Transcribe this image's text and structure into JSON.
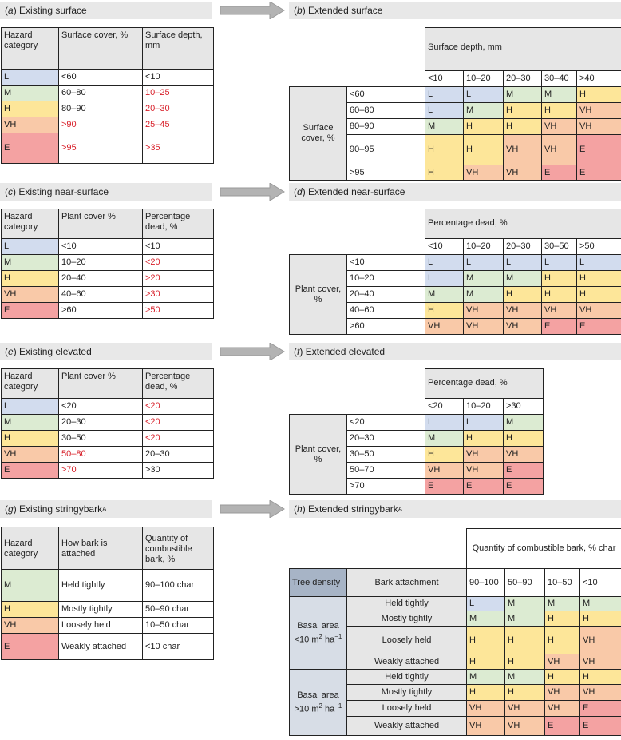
{
  "colors": {
    "L": "#d2dcee",
    "M": "#dcebd2",
    "H": "#fde699",
    "VH": "#f9c9a8",
    "E": "#f4a2a2",
    "header": "#e6e6e6",
    "warn_text": "#d8202a"
  },
  "panels": {
    "a": {
      "title_letter": "a",
      "title_text": "Existing surface",
      "headers": [
        "Hazard category",
        "Surface cover, %",
        "Surface depth, mm"
      ],
      "rows": [
        {
          "cat": "L",
          "c1": "<60",
          "c2": "<10"
        },
        {
          "cat": "M",
          "c1": "60–80",
          "c2": "10–25"
        },
        {
          "cat": "H",
          "c1": "80–90",
          "c2": "20–30"
        },
        {
          "cat": "VH",
          "c1": ">90",
          "c2": "25–45"
        },
        {
          "cat": "E",
          "c1": ">95",
          "c2": ">35"
        }
      ]
    },
    "b": {
      "title_letter": "b",
      "title_text": "Extended surface",
      "col_title": "Surface depth, mm",
      "cols": [
        "<10",
        "10–20",
        "20–30",
        "30–40",
        ">40"
      ],
      "row_title": "Surface cover, %",
      "rows": [
        {
          "label": "<60",
          "vals": [
            "L",
            "L",
            "M",
            "M",
            "H"
          ]
        },
        {
          "label": "60–80",
          "vals": [
            "L",
            "M",
            "H",
            "H",
            "VH"
          ]
        },
        {
          "label": "80–90",
          "vals": [
            "M",
            "H",
            "H",
            "VH",
            "VH"
          ]
        },
        {
          "label": "90–95",
          "vals": [
            "H",
            "H",
            "VH",
            "VH",
            "E"
          ]
        },
        {
          "label": ">95",
          "vals": [
            "H",
            "VH",
            "VH",
            "E",
            "E"
          ]
        }
      ]
    },
    "c": {
      "title_letter": "c",
      "title_text": "Existing near-surface",
      "headers": [
        "Hazard category",
        "Plant cover %",
        "Percentage dead, %"
      ],
      "rows": [
        {
          "cat": "L",
          "c1": "<10",
          "c2": "<10"
        },
        {
          "cat": "M",
          "c1": "10–20",
          "c2": "<20"
        },
        {
          "cat": "H",
          "c1": "20–40",
          "c2": ">20"
        },
        {
          "cat": "VH",
          "c1": "40–60",
          "c2": ">30"
        },
        {
          "cat": "E",
          "c1": ">60",
          "c2": ">50"
        }
      ]
    },
    "d": {
      "title_letter": "d",
      "title_text": "Extended near-surface",
      "col_title": "Percentage dead, %",
      "cols": [
        "<10",
        "10–20",
        "20–30",
        "30–50",
        ">50"
      ],
      "row_title": "Plant cover, %",
      "rows": [
        {
          "label": "<10",
          "vals": [
            "L",
            "L",
            "L",
            "L",
            "L"
          ]
        },
        {
          "label": "10–20",
          "vals": [
            "L",
            "M",
            "M",
            "H",
            "H"
          ]
        },
        {
          "label": "20–40",
          "vals": [
            "M",
            "M",
            "H",
            "H",
            "H"
          ]
        },
        {
          "label": "40–60",
          "vals": [
            "H",
            "VH",
            "VH",
            "VH",
            "VH"
          ]
        },
        {
          "label": ">60",
          "vals": [
            "VH",
            "VH",
            "VH",
            "E",
            "E"
          ]
        }
      ]
    },
    "e": {
      "title_letter": "e",
      "title_text": "Existing elevated",
      "headers": [
        "Hazard category",
        "Plant cover %",
        "Percentage dead, %"
      ],
      "rows": [
        {
          "cat": "L",
          "c1": "<20",
          "c2": "<20"
        },
        {
          "cat": "M",
          "c1": "20–30",
          "c2": "<20"
        },
        {
          "cat": "H",
          "c1": "30–50",
          "c2": "<20"
        },
        {
          "cat": "VH",
          "c1": "50–80",
          "c2": "20–30"
        },
        {
          "cat": "E",
          "c1": ">70",
          "c2": ">30"
        }
      ]
    },
    "f": {
      "title_letter": "f",
      "title_text": "Extended elevated",
      "col_title": "Percentage dead, %",
      "cols": [
        "<20",
        "10–20",
        ">30"
      ],
      "row_title": "Plant cover, %",
      "rows": [
        {
          "label": "<20",
          "vals": [
            "L",
            "L",
            "M"
          ]
        },
        {
          "label": "20–30",
          "vals": [
            "M",
            "H",
            "H"
          ]
        },
        {
          "label": "30–50",
          "vals": [
            "H",
            "VH",
            "VH"
          ]
        },
        {
          "label": "50–70",
          "vals": [
            "VH",
            "VH",
            "E"
          ]
        },
        {
          "label": ">70",
          "vals": [
            "E",
            "E",
            "E"
          ]
        }
      ]
    },
    "g": {
      "title_letter": "g",
      "title_text": "Existing stringybark",
      "title_sup": "A",
      "headers": [
        "Hazard category",
        "How bark is attached",
        "Quantity of combustible bark, %"
      ],
      "rows": [
        {
          "cat": "M",
          "c1": "Held tightly",
          "c2": "90–100 char"
        },
        {
          "cat": "H",
          "c1": "Mostly tightly",
          "c2": "50–90 char"
        },
        {
          "cat": "VH",
          "c1": "Loosely held",
          "c2": "10–50 char"
        },
        {
          "cat": "E",
          "c1": "Weakly attached",
          "c2": "<10 char"
        }
      ]
    },
    "h": {
      "title_letter": "h",
      "title_text": "Extended stringybark",
      "title_sup": "A",
      "col_title": "Quantity of combustible bark, % char",
      "tree_density": "Tree density",
      "bark_attachment": "Bark attachment",
      "cols": [
        "90–100",
        "50–90",
        "10–50",
        "<10"
      ],
      "group1": {
        "line1": "Basal area",
        "line2": "<10 m",
        "sup1": "2",
        "mid": " ha",
        "sup2": "−1"
      },
      "group2": {
        "line1": "Basal area",
        "line2": ">10 m",
        "sup1": "2",
        "mid": " ha",
        "sup2": "−1"
      },
      "rows": [
        {
          "label": "Held tightly",
          "vals": [
            "L",
            "M",
            "M",
            "M"
          ]
        },
        {
          "label": "Mostly tightly",
          "vals": [
            "M",
            "M",
            "H",
            "H"
          ]
        },
        {
          "label": "Loosely held",
          "vals": [
            "H",
            "H",
            "H",
            "VH"
          ]
        },
        {
          "label": "Weakly attached",
          "vals": [
            "H",
            "H",
            "VH",
            "VH"
          ]
        },
        {
          "label": "Held tightly",
          "vals": [
            "M",
            "M",
            "H",
            "H"
          ]
        },
        {
          "label": "Mostly tightly",
          "vals": [
            "H",
            "H",
            "VH",
            "VH"
          ]
        },
        {
          "label": "Loosely held",
          "vals": [
            "VH",
            "VH",
            "VH",
            "E"
          ]
        },
        {
          "label": "Weakly attached",
          "vals": [
            "VH",
            "VH",
            "E",
            "E"
          ]
        }
      ]
    }
  }
}
